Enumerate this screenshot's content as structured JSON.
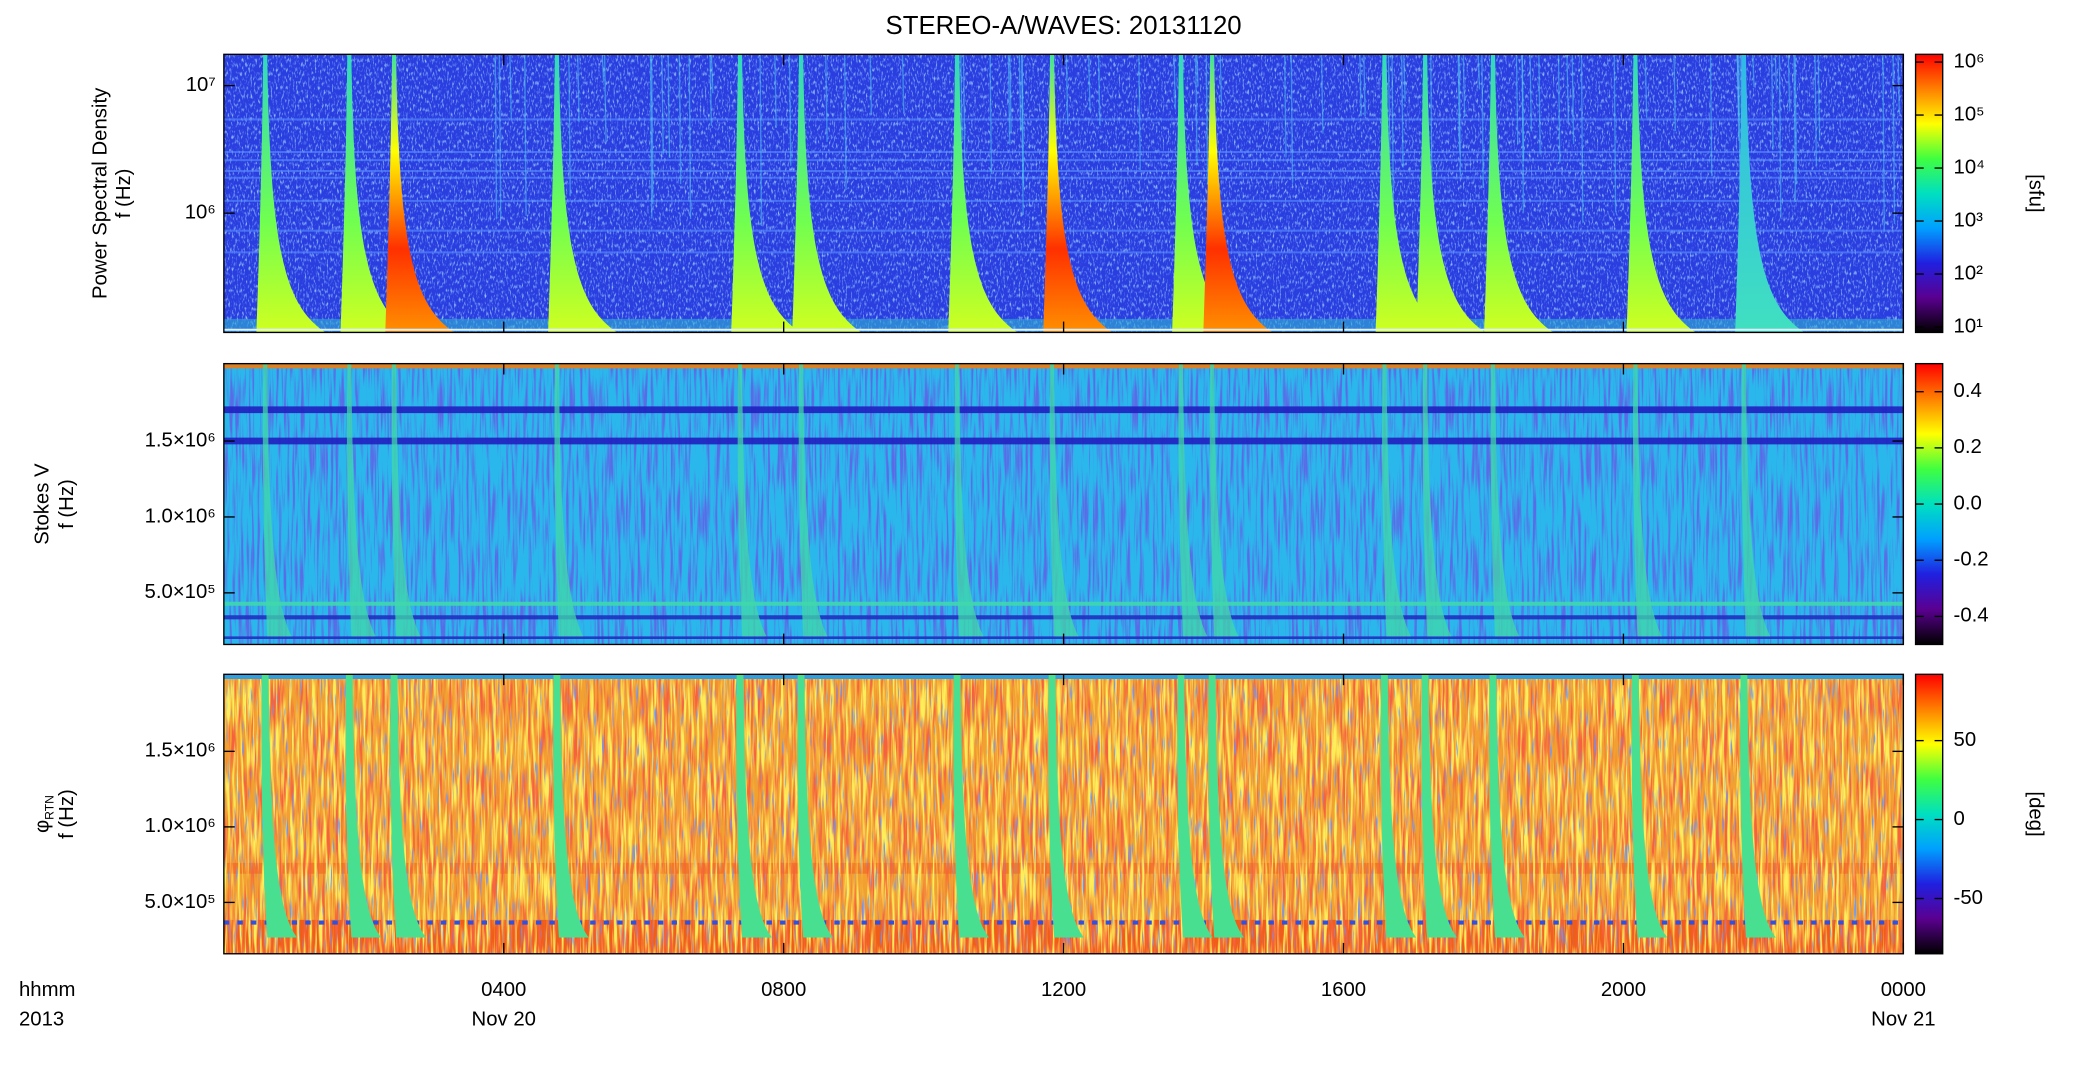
{
  "title": "STEREO-A/WAVES: 20131120",
  "x_axis": {
    "label_lines": [
      "hhmm",
      "2013"
    ],
    "xlim": [
      0,
      24
    ],
    "xticks": [
      {
        "value": 4,
        "label": "0400"
      },
      {
        "value": 8,
        "label": "0800"
      },
      {
        "value": 12,
        "label": "1200"
      },
      {
        "value": 16,
        "label": "1600"
      },
      {
        "value": 20,
        "label": "2000"
      },
      {
        "value": 24,
        "label": "0000"
      }
    ],
    "date_labels": [
      {
        "value": 4,
        "label": "Nov 20"
      },
      {
        "value": 24,
        "label": "Nov 21"
      }
    ]
  },
  "chart_data": [
    {
      "type": "spectrogram",
      "ylabel": "Power Spectral Density",
      "ylabel2": "f (Hz)",
      "yscale": "log",
      "ylim": [
        116000,
        17600000
      ],
      "yticks": [
        {
          "value": 1000000,
          "label": "10⁶"
        },
        {
          "value": 10000000,
          "label": "10⁷"
        }
      ],
      "colormap": [
        "#000000",
        "#5a0090",
        "#2020e0",
        "#00a0ff",
        "#00e0c0",
        "#40ff40",
        "#ffff00",
        "#ff8000",
        "#ff0000"
      ],
      "colorbar": {
        "scale": "log",
        "lim": [
          7.9,
          1400000
        ],
        "label": "[sfu]",
        "ticks": [
          {
            "value": 10,
            "label": "10¹"
          },
          {
            "value": 100,
            "label": "10²"
          },
          {
            "value": 1000,
            "label": "10³"
          },
          {
            "value": 10000,
            "label": "10⁴"
          },
          {
            "value": 100000,
            "label": "10⁵"
          },
          {
            "value": 1000000,
            "label": "10⁶"
          }
        ]
      }
    },
    {
      "type": "spectrogram",
      "ylabel": "Stokes V",
      "ylabel2": "f (Hz)",
      "yscale": "linear",
      "ylim": [
        160000,
        2010000
      ],
      "yticks": [
        {
          "value": 500000,
          "label": "5.0×10⁵"
        },
        {
          "value": 1000000,
          "label": "1.0×10⁶"
        },
        {
          "value": 1500000,
          "label": "1.5×10⁶"
        }
      ],
      "colormap": [
        "#000000",
        "#5a0090",
        "#2020e0",
        "#00a0ff",
        "#00e0c0",
        "#40ff40",
        "#ffff00",
        "#ff8000",
        "#ff0000"
      ],
      "colorbar": {
        "scale": "linear",
        "lim": [
          -0.5,
          0.5
        ],
        "ticks": [
          -0.4,
          -0.2,
          {
            "value": 0,
            "label": "0.0"
          },
          0.2,
          0.4
        ]
      }
    },
    {
      "type": "spectrogram",
      "ylabel": "φ",
      "ylabel_sub": "RTN",
      "ylabel2": "f (Hz)",
      "yscale": "linear",
      "ylim": [
        160000,
        2010000
      ],
      "yticks": [
        {
          "value": 500000,
          "label": "5.0×10⁵"
        },
        {
          "value": 1000000,
          "label": "1.0×10⁶"
        },
        {
          "value": 1500000,
          "label": "1.5×10⁶"
        }
      ],
      "colormap": [
        "#000000",
        "#5a0090",
        "#2020e0",
        "#00a0ff",
        "#00e0c0",
        "#40ff40",
        "#ffff00",
        "#ff8000",
        "#ff0000"
      ],
      "colorbar": {
        "scale": "linear",
        "lim": [
          -85,
          92
        ],
        "label": "[deg]",
        "ticks": [
          -50,
          0,
          50
        ]
      }
    }
  ]
}
